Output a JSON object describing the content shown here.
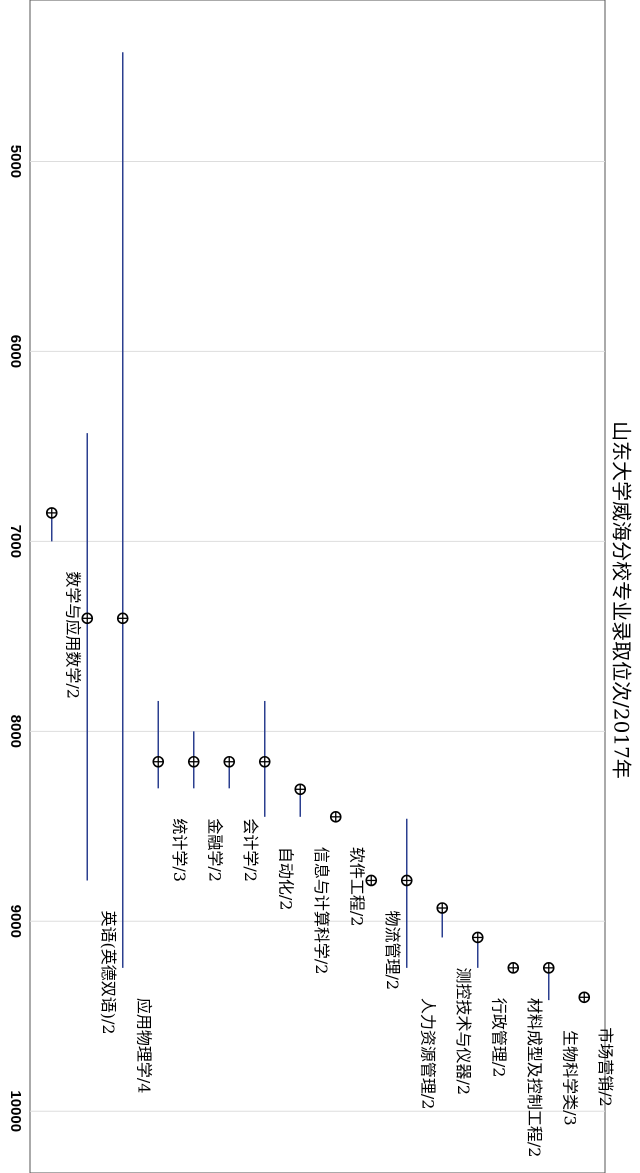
{
  "chart_data": {
    "type": "range_dot",
    "title": "山东大学威海分校专业录取位次/2017年",
    "categories": [
      "数学与应用数学/2",
      "英语(英德双语)/2",
      "应用物理学/4",
      "统计学/3",
      "金融学/2",
      "会计学/2",
      "自动化/2",
      "信息与计算科学/2",
      "软件工程/2",
      "物流管理/2",
      "人力资源管理/2",
      "测控技术与仪器/2",
      "行政管理/2",
      "材料成型及控制工程/2",
      "生物科学类/3",
      "市场营销/2"
    ],
    "values": [
      6850,
      7405,
      7405,
      8160,
      8160,
      8160,
      8160,
      8305,
      8450,
      8785,
      8785,
      8930,
      9085,
      9245,
      9245,
      9400
    ],
    "low": [
      6850,
      6430,
      4425,
      7840,
      8000,
      8160,
      7840,
      8305,
      null,
      null,
      8460,
      8930,
      9085,
      null,
      9245,
      null
    ],
    "high": [
      7000,
      8785,
      9245,
      8300,
      8300,
      8300,
      8450,
      8450,
      null,
      null,
      9245,
      9085,
      9245,
      null,
      9415,
      null
    ],
    "color": "#2b3f8f",
    "ylim": [
      4150,
      10325
    ],
    "yticks": [
      5000,
      6000,
      7000,
      8000,
      9000,
      10000
    ],
    "grid": true
  }
}
